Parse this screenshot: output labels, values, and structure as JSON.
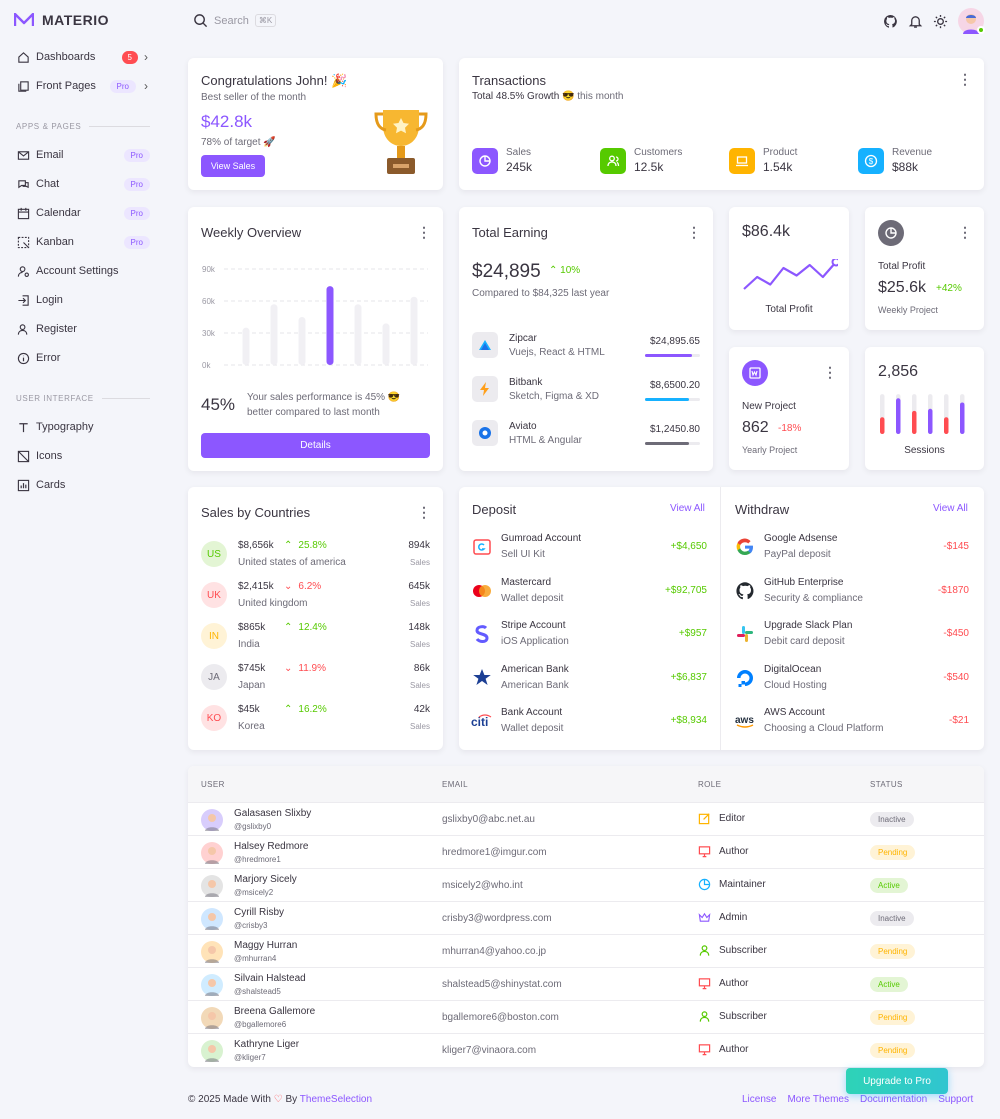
{
  "app": {
    "name": "MATERIO"
  },
  "sidebar": {
    "items": [
      {
        "label": "Dashboards",
        "badge": "5",
        "icon": "home-icon"
      },
      {
        "label": "Front Pages",
        "badge": "Pro",
        "icon": "files-icon"
      }
    ],
    "section1": "APPS & PAGES",
    "apps": [
      {
        "label": "Email",
        "badge": "Pro",
        "icon": "mail-icon"
      },
      {
        "label": "Chat",
        "badge": "Pro",
        "icon": "chat-icon"
      },
      {
        "label": "Calendar",
        "badge": "Pro",
        "icon": "calendar-icon"
      },
      {
        "label": "Kanban",
        "badge": "Pro",
        "icon": "kanban-icon"
      },
      {
        "label": "Account Settings",
        "icon": "user-gear-icon"
      },
      {
        "label": "Login",
        "icon": "login-icon"
      },
      {
        "label": "Register",
        "icon": "user-plus-icon"
      },
      {
        "label": "Error",
        "icon": "info-icon"
      }
    ],
    "section2": "USER INTERFACE",
    "ui": [
      {
        "label": "Typography",
        "icon": "typography-icon"
      },
      {
        "label": "Icons",
        "icon": "icons-icon"
      },
      {
        "label": "Cards",
        "icon": "chart-icon"
      }
    ]
  },
  "search": {
    "placeholder": "Search",
    "shortcut": "⌘K"
  },
  "congrats": {
    "title": "Congratulations John! 🎉",
    "subtitle": "Best seller of the month",
    "amount": "$42.8k",
    "target": "78% of target 🚀",
    "button": "View Sales"
  },
  "transactions": {
    "title": "Transactions",
    "growth_bold": "Total 48.5% Growth",
    "growth_rest": "😎 this month",
    "stats": [
      {
        "label": "Sales",
        "value": "245k",
        "color": "#8c57ff"
      },
      {
        "label": "Customers",
        "value": "12.5k",
        "color": "#56ca00"
      },
      {
        "label": "Product",
        "value": "1.54k",
        "color": "#ffb400"
      },
      {
        "label": "Revenue",
        "value": "$88k",
        "color": "#16b1ff"
      }
    ]
  },
  "weekly": {
    "title": "Weekly Overview",
    "ylabels": [
      "90k",
      "60k",
      "30k",
      "0k"
    ],
    "bars": [
      35,
      57,
      45,
      74,
      57,
      39,
      64
    ],
    "highlight": 3,
    "percent": "45%",
    "text": "Your sales performance is 45% 😎 better compared to last month",
    "button": "Details"
  },
  "earning": {
    "title": "Total Earning",
    "amount": "$24,895",
    "change": "10%",
    "compare": "Compared to $84,325 last year",
    "items": [
      {
        "name": "Zipcar",
        "sub": "Vuejs, React & HTML",
        "amount": "$24,895.65",
        "color": "#8c57ff",
        "progress": 0.85
      },
      {
        "name": "Bitbank",
        "sub": "Sketch, Figma & XD",
        "amount": "$8,6500.20",
        "color": "#16b1ff",
        "progress": 0.8
      },
      {
        "name": "Aviato",
        "sub": "HTML & Angular",
        "amount": "$1,2450.80",
        "color": "#6d6b77",
        "progress": 0.8
      }
    ]
  },
  "profit1": {
    "amount": "$86.4k",
    "label": "Total Profit",
    "line": [
      18,
      10,
      15,
      4,
      9,
      2,
      10,
      0
    ]
  },
  "profit2": {
    "label": "Total Profit",
    "amount": "$25.6k",
    "change": "+42%",
    "sub": "Weekly Project"
  },
  "project": {
    "label": "New Project",
    "amount": "862",
    "change": "-18%",
    "sub": "Yearly Project"
  },
  "sessions": {
    "amount": "2,856",
    "label": "Sessions",
    "bars": [
      {
        "value": 0.95,
        "fill": 0.4,
        "color": "#ff4c51"
      },
      {
        "value": 0.95,
        "fill": 0.85,
        "color": "#8c57ff"
      },
      {
        "value": 0.95,
        "fill": 0.55,
        "color": "#ff4c51"
      },
      {
        "value": 0.95,
        "fill": 0.6,
        "color": "#8c57ff"
      },
      {
        "value": 0.95,
        "fill": 0.4,
        "color": "#ff4c51"
      },
      {
        "value": 0.95,
        "fill": 0.75,
        "color": "#8c57ff"
      }
    ]
  },
  "countries": {
    "title": "Sales by Countries",
    "rows": [
      {
        "code": "US",
        "amount": "$8,656k",
        "change": "25.8%",
        "up": true,
        "name": "United states of america",
        "sales": "894k",
        "bg": "#e3f5d4",
        "fg": "#56ca00"
      },
      {
        "code": "UK",
        "amount": "$2,415k",
        "change": "6.2%",
        "up": false,
        "name": "United kingdom",
        "sales": "645k",
        "bg": "#ffe2e3",
        "fg": "#ff4c51"
      },
      {
        "code": "IN",
        "amount": "$865k",
        "change": "12.4%",
        "up": true,
        "name": "India",
        "sales": "148k",
        "bg": "#fff3d6",
        "fg": "#ffb400"
      },
      {
        "code": "JA",
        "amount": "$745k",
        "change": "11.9%",
        "up": false,
        "name": "Japan",
        "sales": "86k",
        "bg": "#ecebef",
        "fg": "#6d6b77"
      },
      {
        "code": "KO",
        "amount": "$45k",
        "change": "16.2%",
        "up": true,
        "name": "Korea",
        "sales": "42k",
        "bg": "#ffe2e3",
        "fg": "#ff4c51"
      }
    ],
    "sales_label": "Sales"
  },
  "deposit": {
    "title": "Deposit",
    "view_all": "View All",
    "rows": [
      {
        "name": "Gumroad Account",
        "sub": "Sell UI Kit",
        "amount": "+$4,650",
        "icon": "gumroad-icon"
      },
      {
        "name": "Mastercard",
        "sub": "Wallet deposit",
        "amount": "+$92,705",
        "icon": "mastercard-icon"
      },
      {
        "name": "Stripe Account",
        "sub": "iOS Application",
        "amount": "+$957",
        "icon": "stripe-icon"
      },
      {
        "name": "American Bank",
        "sub": "American Bank",
        "amount": "+$6,837",
        "icon": "american-bank-icon"
      },
      {
        "name": "Bank Account",
        "sub": "Wallet deposit",
        "amount": "+$8,934",
        "icon": "citi-icon"
      }
    ]
  },
  "withdraw": {
    "title": "Withdraw",
    "view_all": "View All",
    "rows": [
      {
        "name": "Google Adsense",
        "sub": "PayPal deposit",
        "amount": "-$145",
        "icon": "google-icon"
      },
      {
        "name": "GitHub Enterprise",
        "sub": "Security & compliance",
        "amount": "-$1870",
        "icon": "github-icon"
      },
      {
        "name": "Upgrade Slack Plan",
        "sub": "Debit card deposit",
        "amount": "-$450",
        "icon": "slack-icon"
      },
      {
        "name": "DigitalOcean",
        "sub": "Cloud Hosting",
        "amount": "-$540",
        "icon": "digitalocean-icon"
      },
      {
        "name": "AWS Account",
        "sub": "Choosing a Cloud Platform",
        "amount": "-$21",
        "icon": "aws-icon"
      }
    ]
  },
  "table": {
    "headers": [
      "USER",
      "EMAIL",
      "ROLE",
      "STATUS"
    ],
    "rows": [
      {
        "name": "Galasasen Slixby",
        "user": "@gslixby0",
        "email": "gslixby0@abc.net.au",
        "role": "Editor",
        "status": "Inactive",
        "role_color": "#ffb400",
        "avatar": "#d8cdfc"
      },
      {
        "name": "Halsey Redmore",
        "user": "@hredmore1",
        "email": "hredmore1@imgur.com",
        "role": "Author",
        "status": "Pending",
        "role_color": "#ff4c51",
        "avatar": "#ffd1d1"
      },
      {
        "name": "Marjory Sicely",
        "user": "@msicely2",
        "email": "msicely2@who.int",
        "role": "Maintainer",
        "status": "Active",
        "role_color": "#16b1ff",
        "avatar": "#e4e4e4"
      },
      {
        "name": "Cyrill Risby",
        "user": "@crisby3",
        "email": "crisby3@wordpress.com",
        "role": "Admin",
        "status": "Inactive",
        "role_color": "#8c57ff",
        "avatar": "#cfe7ff"
      },
      {
        "name": "Maggy Hurran",
        "user": "@mhurran4",
        "email": "mhurran4@yahoo.co.jp",
        "role": "Subscriber",
        "status": "Pending",
        "role_color": "#56ca00",
        "avatar": "#ffe3b8"
      },
      {
        "name": "Silvain Halstead",
        "user": "@shalstead5",
        "email": "shalstead5@shinystat.com",
        "role": "Author",
        "status": "Active",
        "role_color": "#ff4c51",
        "avatar": "#d0ecff"
      },
      {
        "name": "Breena Gallemore",
        "user": "@bgallemore6",
        "email": "bgallemore6@boston.com",
        "role": "Subscriber",
        "status": "Pending",
        "role_color": "#56ca00",
        "avatar": "#f2d9b8"
      },
      {
        "name": "Kathryne Liger",
        "user": "@kliger7",
        "email": "kliger7@vinaora.com",
        "role": "Author",
        "status": "Pending",
        "role_color": "#ff4c51",
        "avatar": "#d8f2d0"
      }
    ]
  },
  "footer": {
    "made": "© 2025 Made With",
    "by": "By",
    "brand": "ThemeSelection",
    "links": [
      "License",
      "More Themes",
      "Documentation",
      "Support"
    ]
  },
  "upgrade": "Upgrade to Pro"
}
